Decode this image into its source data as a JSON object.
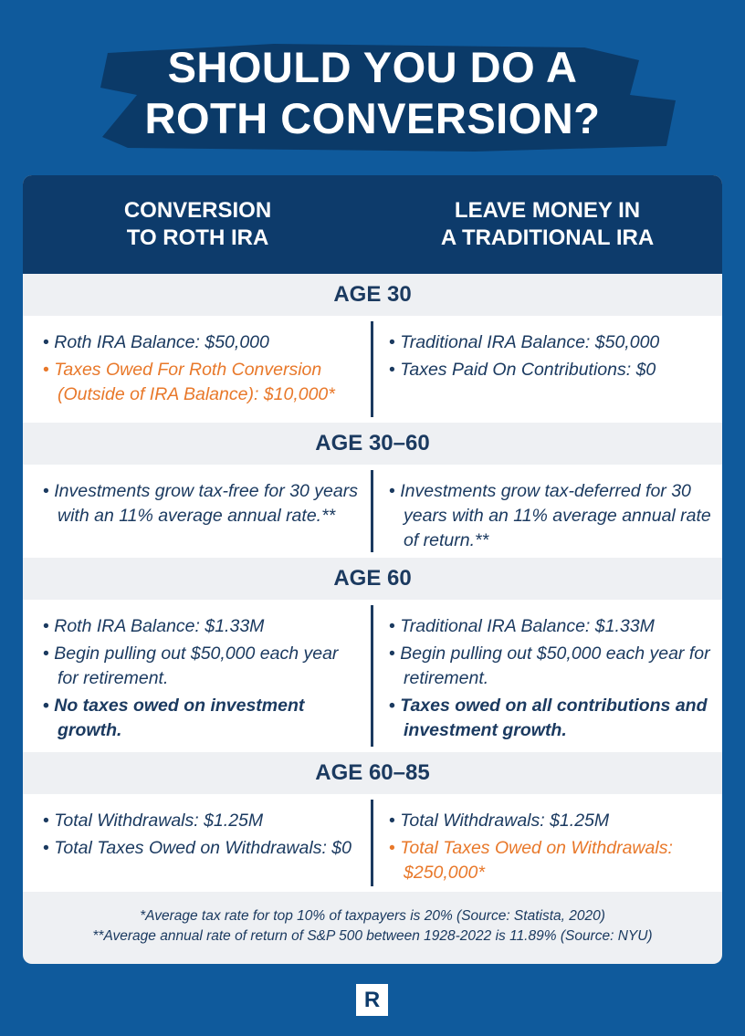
{
  "title": {
    "lines": [
      "SHOULD YOU DO A",
      "ROTH CONVERSION?"
    ]
  },
  "columns": [
    {
      "lines": [
        "CONVERSION",
        "TO ROTH IRA"
      ]
    },
    {
      "lines": [
        "LEAVE MONEY IN",
        "A TRADITIONAL IRA"
      ]
    }
  ],
  "sections": [
    {
      "label": "AGE 30",
      "left": [
        {
          "text": "Roth IRA Balance: $50,000"
        },
        {
          "text": "Taxes Owed For Roth Conversion (Outside of IRA Balance): $10,000*",
          "color": "#e8782a"
        }
      ],
      "right": [
        {
          "text": "Traditional IRA Balance: $50,000"
        },
        {
          "text": "Taxes Paid On Contributions: $0"
        }
      ]
    },
    {
      "label": "AGE 30–60",
      "left": [
        {
          "text": "Investments grow tax-free for 30 years with an 11% average annual rate.**"
        }
      ],
      "right": [
        {
          "text": "Investments grow tax-deferred for 30 years with an 11% average annual rate of return.**"
        }
      ]
    },
    {
      "label": "AGE 60",
      "left": [
        {
          "text": "Roth IRA Balance: $1.33M"
        },
        {
          "text": "Begin pulling out $50,000 each year for retirement."
        },
        {
          "text": "No taxes owed on investment growth.",
          "bold": true
        }
      ],
      "right": [
        {
          "text": "Traditional IRA Balance: $1.33M"
        },
        {
          "text": "Begin pulling out $50,000 each year for retirement."
        },
        {
          "text": "Taxes owed on all contributions and investment growth.",
          "bold": true
        }
      ]
    },
    {
      "label": "AGE 60–85",
      "left": [
        {
          "text": "Total Withdrawals: $1.25M"
        },
        {
          "text": "Total Taxes Owed on Withdrawals: $0"
        }
      ],
      "right": [
        {
          "text": "Total Withdrawals: $1.25M"
        },
        {
          "text": "Total Taxes Owed on Withdrawals: $250,000*",
          "color": "#e8782a"
        }
      ]
    }
  ],
  "footnotes": [
    "*Average tax rate for top 10% of taxpayers is 20% (Source: Statista, 2020)",
    "**Average annual rate of return of S&P 500 between 1928-2022 is 11.89% (Source: NYU)"
  ],
  "logo": "R"
}
